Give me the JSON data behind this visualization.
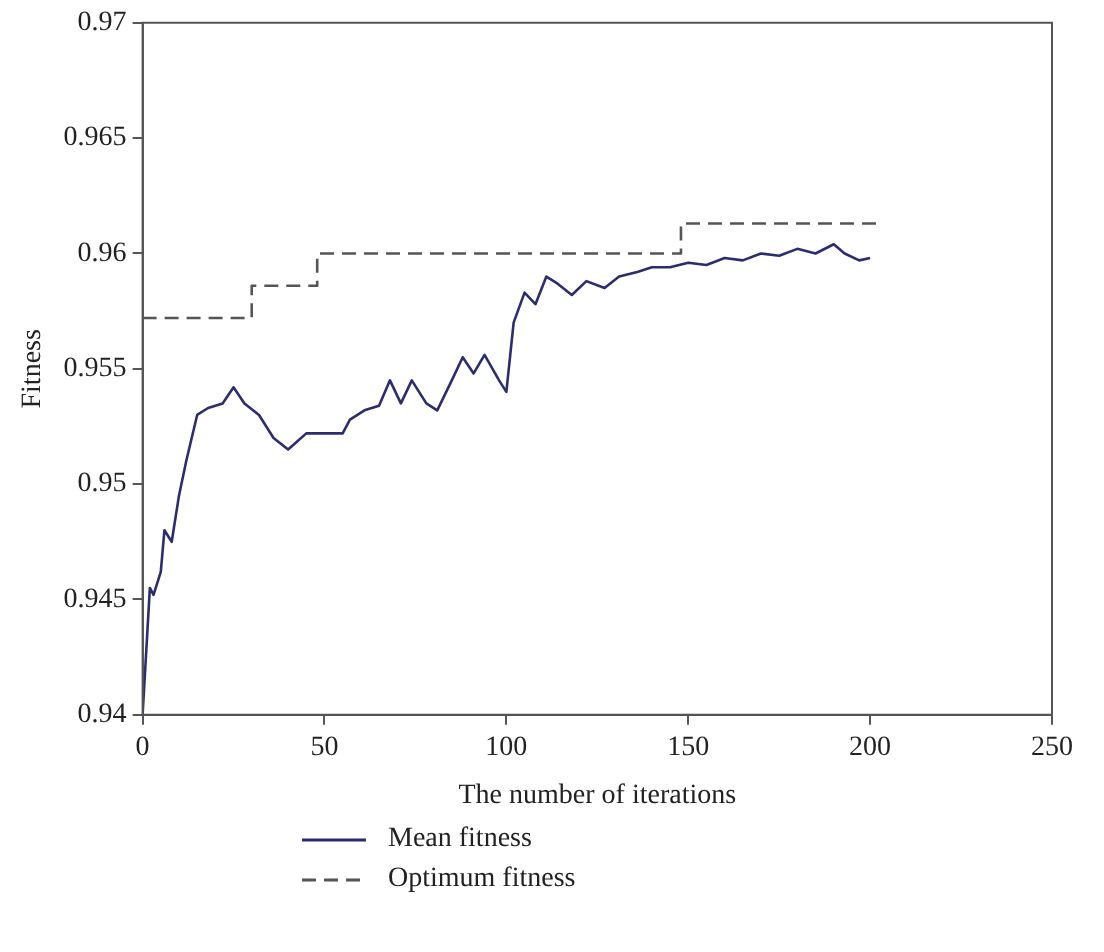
{
  "chart_data": {
    "type": "line",
    "xlabel": "The number of iterations",
    "ylabel": "Fitness",
    "xlim": [
      0,
      250
    ],
    "xticks": [
      0,
      50,
      100,
      150,
      200,
      250
    ],
    "ylim": [
      0.94,
      0.97
    ],
    "yticks": [
      0.94,
      0.945,
      0.95,
      0.955,
      0.96,
      0.965,
      0.97
    ],
    "grid": false,
    "legend": "bottom",
    "series": [
      {
        "name": "Mean fitness",
        "color": "#2b2d6e",
        "line_style": "solid",
        "x": [
          0,
          2,
          3,
          5,
          6,
          8,
          10,
          12,
          15,
          18,
          22,
          25,
          28,
          32,
          36,
          40,
          45,
          50,
          55,
          57,
          61,
          65,
          68,
          71,
          74,
          78,
          81,
          85,
          88,
          91,
          94,
          98,
          100,
          102,
          105,
          108,
          111,
          114,
          118,
          122,
          127,
          131,
          136,
          140,
          145,
          150,
          155,
          160,
          165,
          170,
          175,
          180,
          185,
          190,
          193,
          197,
          200
        ],
        "values": [
          0.94,
          0.9455,
          0.9452,
          0.9462,
          0.948,
          0.9475,
          0.9495,
          0.951,
          0.953,
          0.9533,
          0.9535,
          0.9542,
          0.9535,
          0.953,
          0.952,
          0.9515,
          0.9522,
          0.9522,
          0.9522,
          0.9528,
          0.9532,
          0.9534,
          0.9545,
          0.9535,
          0.9545,
          0.9535,
          0.9532,
          0.9545,
          0.9555,
          0.9548,
          0.9556,
          0.9545,
          0.954,
          0.957,
          0.9583,
          0.9578,
          0.959,
          0.9587,
          0.9582,
          0.9588,
          0.9585,
          0.959,
          0.9592,
          0.9594,
          0.9594,
          0.9596,
          0.9595,
          0.9598,
          0.9597,
          0.96,
          0.9599,
          0.9602,
          0.96,
          0.9604,
          0.96,
          0.9597,
          0.9598
        ]
      },
      {
        "name": "Optimum fitness",
        "type": "step",
        "color": "#555555",
        "line_style": "dashed",
        "x": [
          0,
          30,
          48,
          148,
          202
        ],
        "values": [
          0.9572,
          0.9586,
          0.96,
          0.9613,
          0.9613
        ]
      }
    ]
  }
}
